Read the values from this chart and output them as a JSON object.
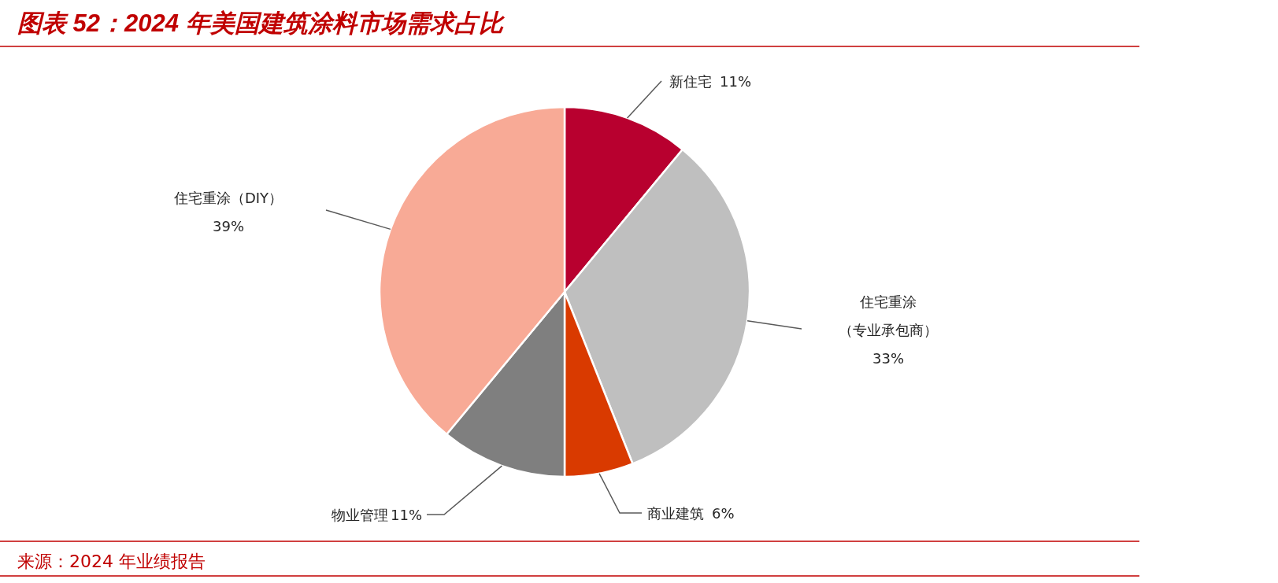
{
  "chart_data": {
    "type": "pie",
    "title": "图表 52：2024 年美国建筑涂料市场需求占比",
    "categories": [
      "新住宅",
      "住宅重涂（专业承包商）",
      "商业建筑",
      "物业管理",
      "住宅重涂（DIY）"
    ],
    "values": [
      11,
      33,
      6,
      11,
      39
    ],
    "colors": [
      "#b8002f",
      "#bfbfbf",
      "#d93a00",
      "#7f7f7f",
      "#f8aa96"
    ],
    "value_labels": [
      "11%",
      "33%",
      "6%",
      "11%",
      "39%"
    ],
    "annotations": [
      "来源：2024 年业绩报告"
    ]
  }
}
